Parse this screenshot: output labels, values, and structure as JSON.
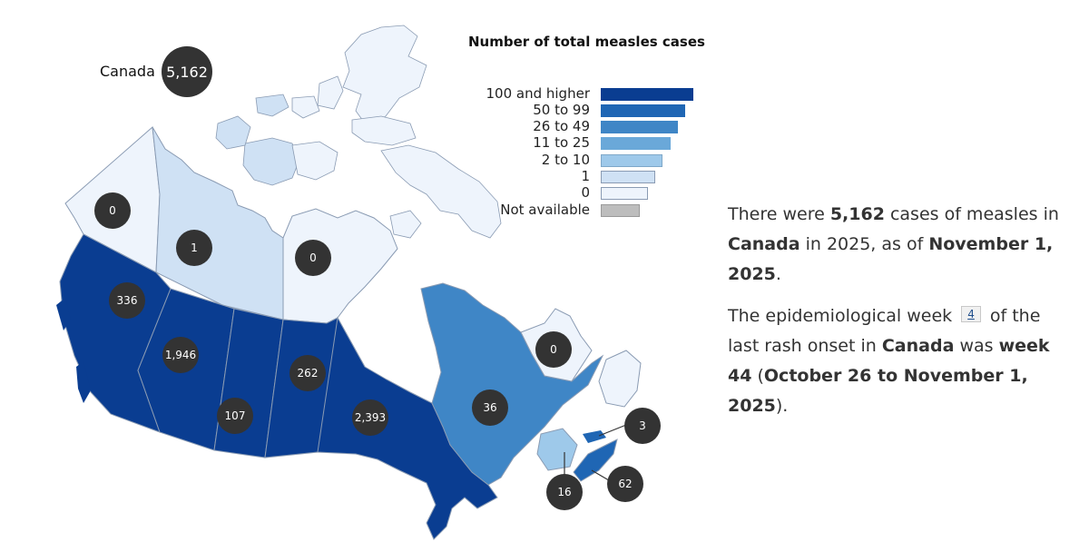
{
  "title": "Number of total measles cases",
  "colors": {
    "c100": "#0a3d91",
    "c50": "#1f66b4",
    "c26": "#3f86c6",
    "c11": "#6aa8d9",
    "c2": "#9ec9ea",
    "c1": "#cfe1f4",
    "c0": "#eef4fc",
    "na": "#bdbdbd",
    "bubble": "#333333",
    "border": "#8a9bb3"
  },
  "legend": [
    {
      "label": "100 and higher",
      "color": "#0a3d91"
    },
    {
      "label": "50 to 99",
      "color": "#1f66b4"
    },
    {
      "label": "26 to 49",
      "color": "#3f86c6"
    },
    {
      "label": "11 to 25",
      "color": "#6aa8d9"
    },
    {
      "label": "2 to 10",
      "color": "#9ec9ea"
    },
    {
      "label": "1",
      "color": "#cfe1f4"
    },
    {
      "label": "0",
      "color": "#eef4fc"
    },
    {
      "label": "Not available",
      "color": "#bdbdbd"
    }
  ],
  "national": {
    "label": "Canada",
    "value": "5,162"
  },
  "regions": [
    {
      "id": "yukon",
      "value": "0"
    },
    {
      "id": "northwest-territories",
      "value": "1"
    },
    {
      "id": "nunavut",
      "value": "0"
    },
    {
      "id": "british-columbia",
      "value": "336"
    },
    {
      "id": "alberta",
      "value": "1,946"
    },
    {
      "id": "saskatchewan",
      "value": "107"
    },
    {
      "id": "manitoba",
      "value": "262"
    },
    {
      "id": "ontario",
      "value": "2,393"
    },
    {
      "id": "quebec",
      "value": "36"
    },
    {
      "id": "newfoundland-and-labrador",
      "value": "0"
    },
    {
      "id": "prince-edward-island",
      "value": "3"
    },
    {
      "id": "new-brunswick",
      "value": "16"
    },
    {
      "id": "nova-scotia",
      "value": "62"
    }
  ],
  "summary": {
    "p1_a": "There were ",
    "p1_count": "5,162",
    "p1_b": " cases of measles in ",
    "p1_country": "Canada",
    "p1_c": " in 2025, as of ",
    "p1_date": "November 1, 2025",
    "p1_d": ".",
    "p2_a": "The epidemiological week ",
    "p2_badge": "4",
    "p2_b": " of the last rash onset in ",
    "p2_country": "Canada",
    "p2_c": " was ",
    "p2_week": "week 44",
    "p2_d": " (",
    "p2_range": "October 26 to November 1, 2025",
    "p2_e": ")."
  }
}
